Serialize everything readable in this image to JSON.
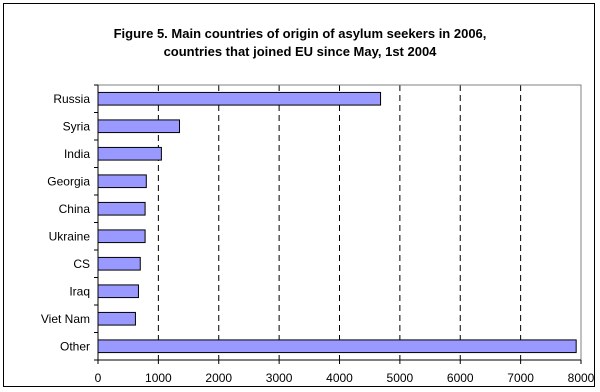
{
  "chart_data": {
    "type": "bar",
    "orientation": "horizontal",
    "title_lines": [
      "Figure 5. Main countries of origin of asylum seekers in 2006,",
      "countries that joined EU since May, 1st 2004"
    ],
    "categories": [
      "Russia",
      "Syria",
      "India",
      "Georgia",
      "China",
      "Ukraine",
      "CS",
      "Iraq",
      "Viet Nam",
      "Other"
    ],
    "values": [
      4680,
      1350,
      1050,
      800,
      780,
      780,
      700,
      670,
      620,
      7920
    ],
    "xlim": [
      0,
      8000
    ],
    "xticks": [
      0,
      1000,
      2000,
      3000,
      4000,
      5000,
      6000,
      7000,
      8000
    ],
    "grid": "vertical-dashed",
    "legend": "none",
    "bar_color": "#9999ff",
    "bar_edge_color": "#000000"
  }
}
